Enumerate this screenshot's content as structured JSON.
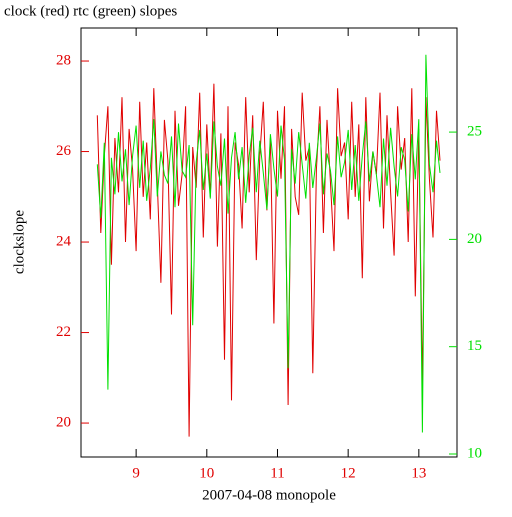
{
  "chart_data": {
    "type": "line",
    "title": "clock (red) rtc (green) slopes",
    "xlabel": "2007-04-08 monopole",
    "ylabel": "clockslope",
    "xlim": [
      8.22,
      13.54
    ],
    "ylim": [
      19.25,
      28.73
    ],
    "y2lim": [
      9.86,
      29.85
    ],
    "xticks": [
      9,
      10,
      11,
      12,
      13
    ],
    "yticks": [
      20,
      22,
      24,
      26,
      28
    ],
    "y2ticks": [
      10,
      15,
      20,
      25
    ],
    "x": [
      8.45,
      8.5,
      8.55,
      8.6,
      8.65,
      8.7,
      8.75,
      8.8,
      8.85,
      8.9,
      8.95,
      9.0,
      9.05,
      9.1,
      9.15,
      9.2,
      9.25,
      9.3,
      9.35,
      9.4,
      9.45,
      9.5,
      9.55,
      9.6,
      9.65,
      9.7,
      9.75,
      9.8,
      9.85,
      9.9,
      9.95,
      10.0,
      10.05,
      10.1,
      10.15,
      10.2,
      10.25,
      10.3,
      10.35,
      10.4,
      10.45,
      10.5,
      10.55,
      10.6,
      10.65,
      10.7,
      10.75,
      10.8,
      10.85,
      10.9,
      10.95,
      11.0,
      11.05,
      11.1,
      11.15,
      11.2,
      11.25,
      11.3,
      11.35,
      11.4,
      11.45,
      11.5,
      11.55,
      11.6,
      11.65,
      11.7,
      11.75,
      11.8,
      11.85,
      11.9,
      11.95,
      12.0,
      12.05,
      12.1,
      12.15,
      12.2,
      12.25,
      12.3,
      12.35,
      12.4,
      12.45,
      12.5,
      12.55,
      12.6,
      12.65,
      12.7,
      12.75,
      12.8,
      12.85,
      12.9,
      12.95,
      13.0,
      13.05,
      13.1,
      13.15,
      13.2,
      13.25,
      13.3
    ],
    "series": [
      {
        "name": "clock",
        "color": "#e00000",
        "values": [
          26.8,
          24.2,
          25.9,
          27.0,
          23.5,
          26.3,
          25.1,
          27.2,
          24.0,
          26.5,
          25.6,
          23.8,
          27.1,
          25.0,
          26.2,
          24.5,
          27.4,
          25.3,
          23.1,
          26.7,
          25.8,
          22.4,
          26.9,
          24.8,
          25.5,
          27.0,
          19.7,
          26.1,
          25.2,
          27.3,
          24.1,
          26.6,
          25.0,
          27.5,
          23.9,
          26.4,
          21.4,
          27.0,
          20.5,
          26.2,
          25.7,
          24.3,
          27.2,
          25.1,
          26.8,
          23.6,
          25.9,
          27.1,
          24.7,
          26.3,
          22.2,
          26.9,
          25.4,
          27.0,
          20.4,
          26.5,
          25.0,
          24.6,
          27.3,
          25.8,
          26.1,
          21.1,
          25.6,
          27.0,
          24.2,
          26.7,
          25.3,
          23.8,
          27.4,
          25.9,
          26.2,
          24.5,
          27.1,
          25.0,
          26.6,
          23.2,
          27.2,
          24.9,
          26.0,
          25.5,
          27.3,
          24.3,
          26.8,
          25.1,
          23.7,
          27.0,
          25.6,
          26.3,
          24.0,
          27.4,
          22.8,
          26.5,
          20.8,
          27.2,
          25.4,
          24.1,
          26.9,
          25.8
        ]
      },
      {
        "name": "rtc",
        "color": "#00e000",
        "axis": "y2",
        "values": [
          23.5,
          21.0,
          24.5,
          13.0,
          23.8,
          22.1,
          25.0,
          22.7,
          24.2,
          21.6,
          23.9,
          25.3,
          22.4,
          24.6,
          21.8,
          23.3,
          25.6,
          22.0,
          24.1,
          23.0,
          22.6,
          24.8,
          21.5,
          25.4,
          23.2,
          22.9,
          24.4,
          16.0,
          23.6,
          25.1,
          22.3,
          24.0,
          21.9,
          25.5,
          23.4,
          22.5,
          24.7,
          21.2,
          23.8,
          25.0,
          22.8,
          24.3,
          21.7,
          23.9,
          25.2,
          22.2,
          24.6,
          23.1,
          21.4,
          24.9,
          23.3,
          22.0,
          25.3,
          23.7,
          14.0,
          24.2,
          22.6,
          25.0,
          23.5,
          21.9,
          24.5,
          22.4,
          23.8,
          25.4,
          22.1,
          24.0,
          23.2,
          21.6,
          24.8,
          22.9,
          23.6,
          25.1,
          22.3,
          24.4,
          21.8,
          23.9,
          25.5,
          22.7,
          24.1,
          23.0,
          21.5,
          24.7,
          22.5,
          25.2,
          23.4,
          22.0,
          24.3,
          23.7,
          21.3,
          24.9,
          22.8,
          25.6,
          11.0,
          28.6,
          23.5,
          22.2,
          24.6,
          23.1
        ]
      }
    ]
  }
}
